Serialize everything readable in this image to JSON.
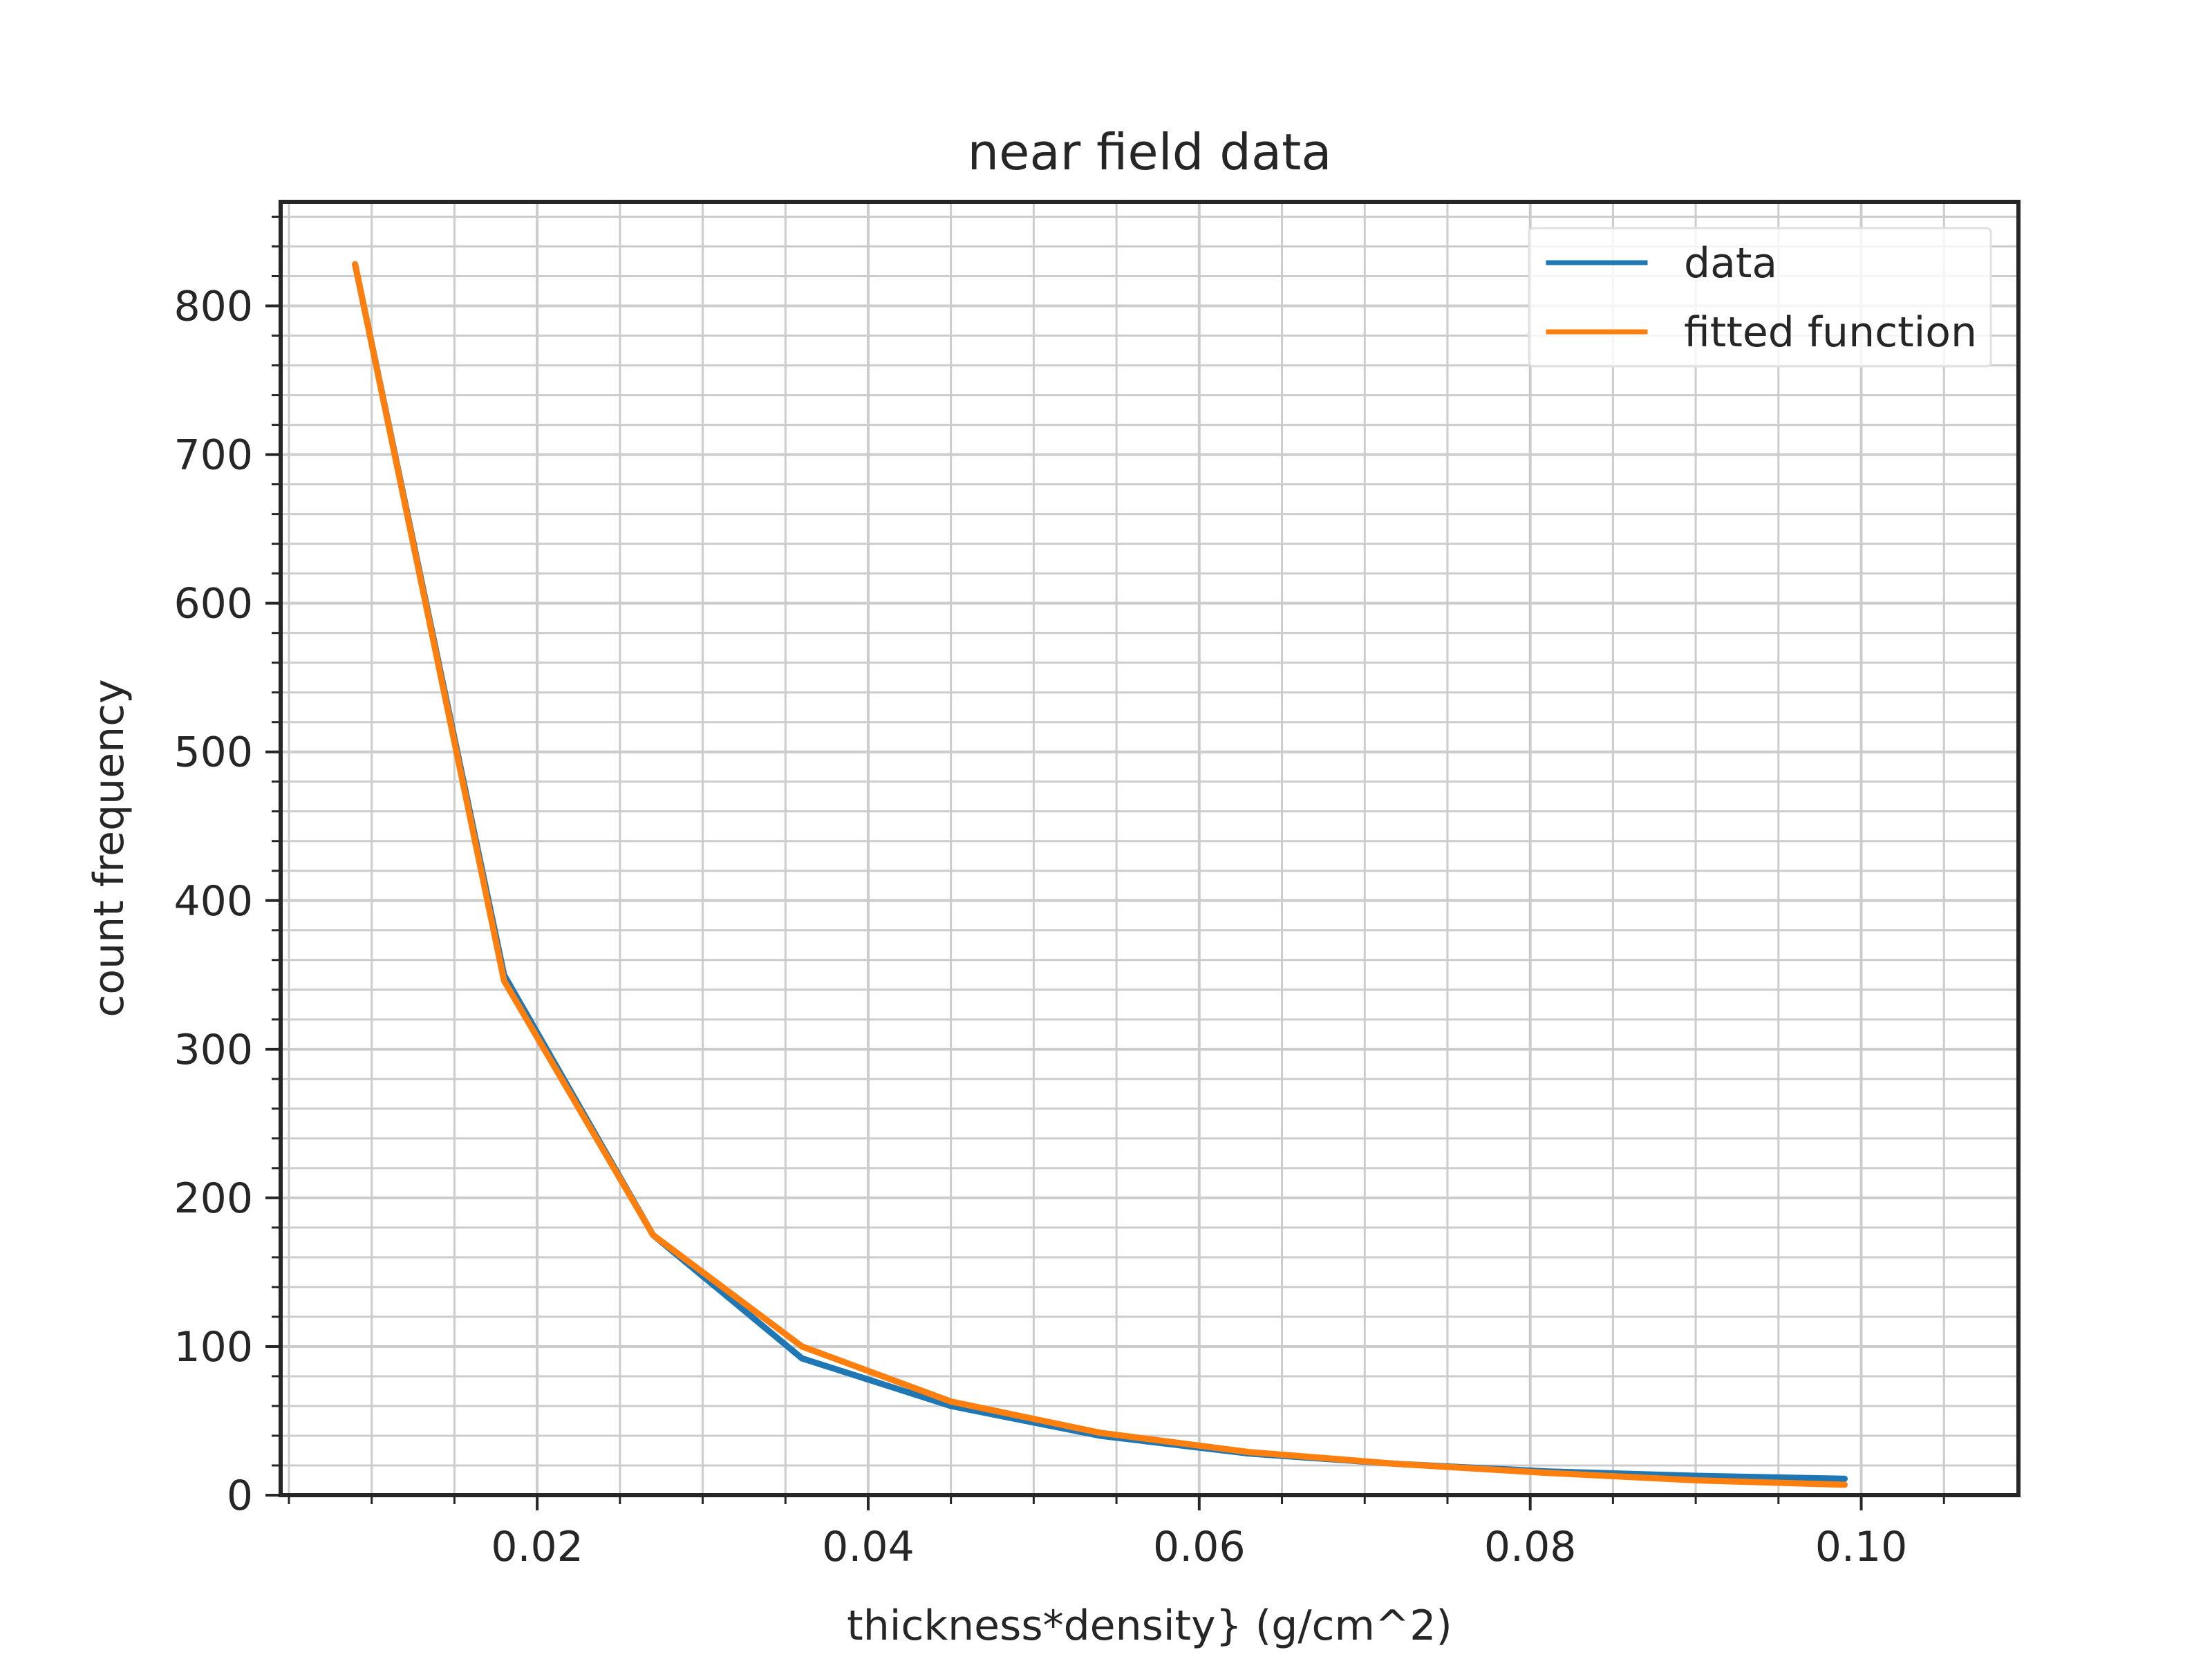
{
  "chart_data": {
    "type": "line",
    "title": "near field data",
    "xlabel": "thickness*density} (g/cm^2)",
    "ylabel": "count frequency",
    "xlim": [
      0.0045,
      0.1095
    ],
    "ylim": [
      0,
      870
    ],
    "xticks": [
      0.02,
      0.04,
      0.06,
      0.08,
      0.1
    ],
    "xtick_labels": [
      "0.02",
      "0.04",
      "0.06",
      "0.08",
      "0.10"
    ],
    "yticks": [
      0,
      100,
      200,
      300,
      400,
      500,
      600,
      700,
      800
    ],
    "ytick_labels": [
      "0",
      "100",
      "200",
      "300",
      "400",
      "500",
      "600",
      "700",
      "800"
    ],
    "grid": true,
    "legend_position": "top-right",
    "series": [
      {
        "name": "data",
        "color": "#1f77b4",
        "x": [
          0.009,
          0.018,
          0.027,
          0.036,
          0.045,
          0.054,
          0.063,
          0.072,
          0.081,
          0.09,
          0.099
        ],
        "y": [
          828,
          350,
          175,
          92,
          60,
          40,
          28,
          21,
          16,
          13,
          11
        ]
      },
      {
        "name": "fitted function",
        "color": "#ff7f0e",
        "x": [
          0.009,
          0.018,
          0.027,
          0.036,
          0.045,
          0.054,
          0.063,
          0.072,
          0.081,
          0.09,
          0.099
        ],
        "y": [
          828,
          346,
          175,
          100,
          63,
          42,
          29,
          21,
          15,
          10,
          7
        ]
      }
    ]
  }
}
